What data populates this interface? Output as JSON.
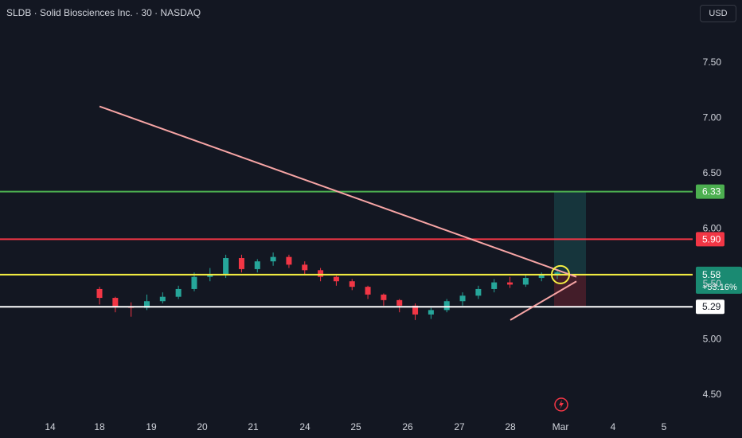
{
  "header": {
    "title": "SLDB · Solid Biosciences Inc. · 30 · NASDAQ"
  },
  "currency_button": "USD",
  "colors": {
    "background": "#131722",
    "up": "#26a69a",
    "down": "#f23645",
    "trendline": "#f7a5a5",
    "level_green": "#4caf50",
    "level_red": "#f23645",
    "level_yellow": "#f5ef42",
    "level_white": "#ffffff",
    "axis_text": "#d1d4dc"
  },
  "icons": {
    "alert": "lightning-icon",
    "highlight": "circle-marker"
  },
  "chart_data": {
    "type": "candlestick",
    "title": "SLDB · Solid Biosciences Inc. · 30 · NASDAQ",
    "interval": "30",
    "currency": "USD",
    "x_tick_labels": [
      "14",
      "18",
      "19",
      "20",
      "21",
      "24",
      "25",
      "26",
      "27",
      "28",
      "Mar",
      "4",
      "5"
    ],
    "y_tick_labels": [
      "7.50",
      "7.00",
      "6.50",
      "6.00",
      "5.50",
      "5.00",
      "4.50"
    ],
    "ylim": [
      4.4,
      7.95
    ],
    "grid": false,
    "horizontal_levels": [
      {
        "value": 6.33,
        "label": "6.33",
        "color": "#4caf50"
      },
      {
        "value": 5.9,
        "label": "5.90",
        "color": "#f23645"
      },
      {
        "value": 5.58,
        "label": "5.58",
        "sublabel": "+53.16%",
        "color": "#f5ef42",
        "badge": "#1a8a72"
      },
      {
        "value": 5.29,
        "label": "5.29",
        "color": "#ffffff"
      }
    ],
    "trendlines": [
      {
        "from": {
          "x": "18",
          "y": 7.1
        },
        "to": {
          "x": "Mar",
          "y": 5.56
        }
      },
      {
        "from": {
          "x": "28",
          "y": 5.17
        },
        "to": {
          "x": "Mar",
          "y": 5.52
        }
      }
    ],
    "position_box": {
      "from": "Mar",
      "entry": 5.58,
      "target": 6.33,
      "stop": 5.29
    },
    "ohlc": [
      [
        5.45,
        5.47,
        5.31,
        5.37
      ],
      [
        5.37,
        5.38,
        5.24,
        5.29
      ],
      [
        5.29,
        5.33,
        5.2,
        5.28
      ],
      [
        5.28,
        5.4,
        5.26,
        5.34
      ],
      [
        5.34,
        5.42,
        5.32,
        5.38
      ],
      [
        5.38,
        5.48,
        5.36,
        5.45
      ],
      [
        5.45,
        5.6,
        5.43,
        5.56
      ],
      [
        5.56,
        5.64,
        5.52,
        5.58
      ],
      [
        5.58,
        5.76,
        5.55,
        5.73
      ],
      [
        5.73,
        5.76,
        5.6,
        5.63
      ],
      [
        5.63,
        5.72,
        5.6,
        5.7
      ],
      [
        5.7,
        5.78,
        5.66,
        5.74
      ],
      [
        5.74,
        5.76,
        5.64,
        5.67
      ],
      [
        5.67,
        5.7,
        5.58,
        5.62
      ],
      [
        5.62,
        5.64,
        5.52,
        5.56
      ],
      [
        5.56,
        5.57,
        5.48,
        5.52
      ],
      [
        5.52,
        5.54,
        5.44,
        5.47
      ],
      [
        5.47,
        5.48,
        5.36,
        5.4
      ],
      [
        5.4,
        5.41,
        5.3,
        5.35
      ],
      [
        5.35,
        5.36,
        5.24,
        5.3
      ],
      [
        5.3,
        5.32,
        5.17,
        5.22
      ],
      [
        5.22,
        5.28,
        5.18,
        5.26
      ],
      [
        5.26,
        5.36,
        5.24,
        5.34
      ],
      [
        5.34,
        5.42,
        5.3,
        5.39
      ],
      [
        5.39,
        5.48,
        5.36,
        5.45
      ],
      [
        5.45,
        5.54,
        5.42,
        5.51
      ],
      [
        5.51,
        5.56,
        5.46,
        5.49
      ],
      [
        5.49,
        5.58,
        5.47,
        5.55
      ],
      [
        5.55,
        5.6,
        5.52,
        5.58
      ],
      [
        5.58,
        5.62,
        5.54,
        5.6
      ]
    ],
    "last_price": 5.58,
    "change_percent": "+53.16%"
  }
}
